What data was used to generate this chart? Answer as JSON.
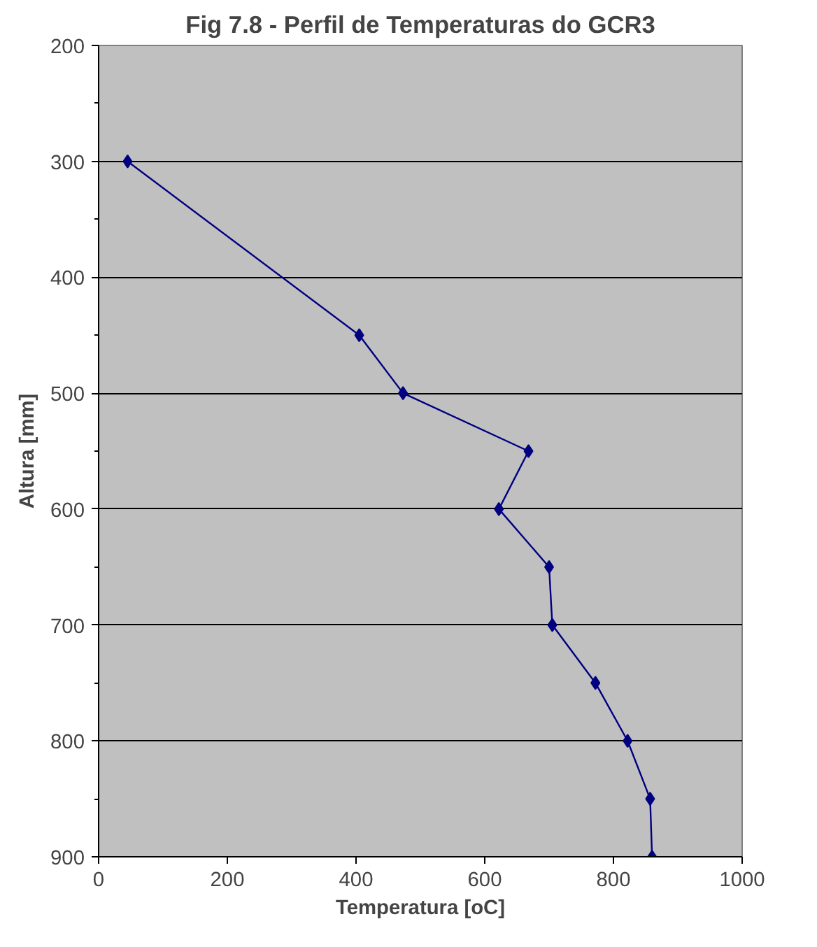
{
  "chart_data": {
    "type": "line",
    "title": "Fig 7.8 - Perfil de Temperaturas do GCR3",
    "xlabel": "Temperatura [oC]",
    "ylabel": "Altura [mm]",
    "series": [
      {
        "color": "#000080",
        "x": [
          45,
          405,
          473,
          668,
          622,
          700,
          705,
          772,
          822,
          857,
          860
        ],
        "values": [
          300,
          450,
          500,
          550,
          600,
          650,
          700,
          750,
          800,
          850,
          900
        ]
      }
    ],
    "xlim": [
      0,
      1000
    ],
    "xticks": [
      0,
      200,
      400,
      600,
      800,
      1000
    ],
    "ylim": [
      900,
      200
    ],
    "yticks": [
      200,
      {
        "value": 250,
        "label": null
      },
      300,
      {
        "value": 350,
        "label": null
      },
      400,
      {
        "value": 450,
        "label": null
      },
      500,
      {
        "value": 550,
        "label": null
      },
      600,
      {
        "value": 650,
        "label": null
      },
      700,
      {
        "value": 750,
        "label": null
      },
      800,
      {
        "value": 850,
        "label": null
      },
      900
    ],
    "grid": "y",
    "marker": "diamond",
    "line_style": "solid"
  }
}
